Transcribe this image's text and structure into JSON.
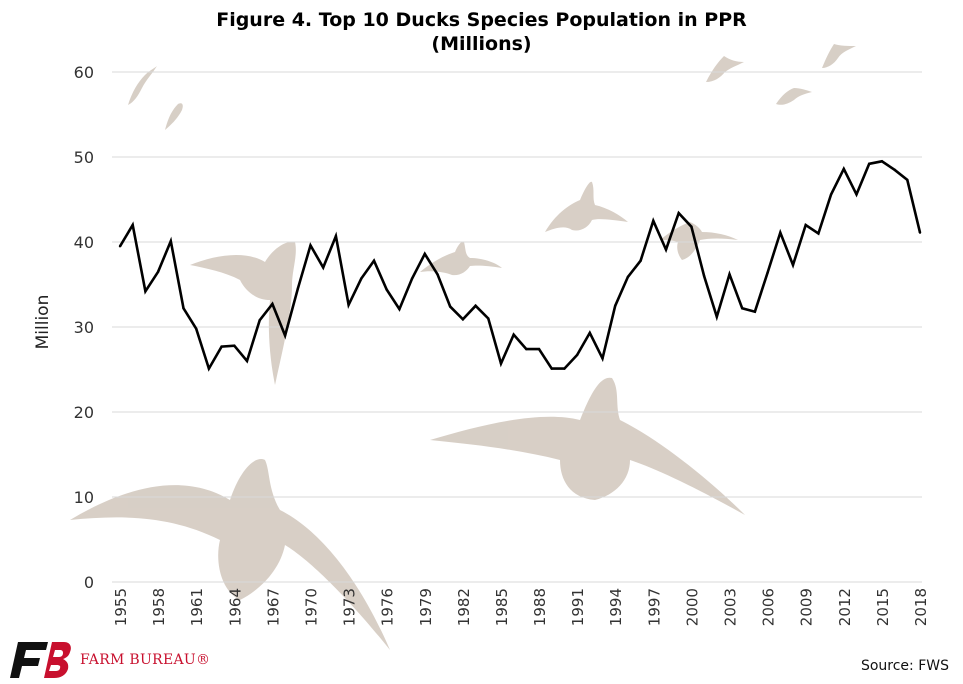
{
  "chart_data": {
    "type": "line",
    "title": "Figure 4. Top 10 Ducks Species Population in PPR",
    "subtitle": "(Millions)",
    "ylabel": "Million",
    "xlabel": "",
    "ylim": [
      0,
      60
    ],
    "yticks": [
      0,
      10,
      20,
      30,
      40,
      50,
      60
    ],
    "xticks": [
      1955,
      1958,
      1961,
      1964,
      1967,
      1970,
      1973,
      1976,
      1979,
      1982,
      1985,
      1988,
      1991,
      1994,
      1997,
      2000,
      2003,
      2006,
      2009,
      2012,
      2015,
      2018
    ],
    "grid": true,
    "series_color": "#000000",
    "grid_color": "#d9d9d9",
    "x": [
      1955,
      1956,
      1957,
      1958,
      1959,
      1960,
      1961,
      1962,
      1963,
      1964,
      1965,
      1966,
      1967,
      1968,
      1969,
      1970,
      1971,
      1972,
      1973,
      1974,
      1975,
      1976,
      1977,
      1978,
      1979,
      1980,
      1981,
      1982,
      1983,
      1984,
      1985,
      1986,
      1987,
      1988,
      1989,
      1990,
      1991,
      1992,
      1993,
      1994,
      1995,
      1996,
      1997,
      1998,
      1999,
      2000,
      2001,
      2002,
      2003,
      2004,
      2005,
      2006,
      2007,
      2008,
      2009,
      2010,
      2011,
      2012,
      2013,
      2014,
      2015,
      2016,
      2017,
      2018
    ],
    "y": [
      39.5,
      42.0,
      34.2,
      36.5,
      40.1,
      32.2,
      29.8,
      25.1,
      27.7,
      27.8,
      26.0,
      30.8,
      32.7,
      29.0,
      34.5,
      39.6,
      37.0,
      40.7,
      32.6,
      35.7,
      37.8,
      34.4,
      32.1,
      35.7,
      38.6,
      36.2,
      32.4,
      30.9,
      32.5,
      31.0,
      25.7,
      29.1,
      27.4,
      27.4,
      25.1,
      25.1,
      26.7,
      29.3,
      26.3,
      32.5,
      35.9,
      37.8,
      42.5,
      39.1,
      43.4,
      41.8,
      36.0,
      31.2,
      36.2,
      32.2,
      31.8,
      36.4,
      41.1,
      37.3,
      42.0,
      41.0,
      45.6,
      48.6,
      45.6,
      49.2,
      49.5,
      48.5,
      47.3,
      41.1
    ]
  },
  "footer": {
    "source": "Source: FWS",
    "brand_name": "FARM BUREAU®",
    "brand_color": "#c8102e",
    "logo_glyph": "FB"
  }
}
